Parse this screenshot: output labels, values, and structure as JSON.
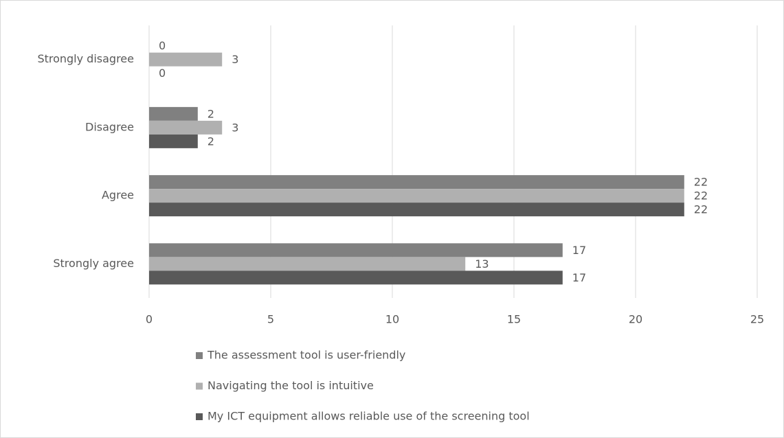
{
  "chart_data": {
    "type": "hbar",
    "categories": [
      "Strongly disagree",
      "Disagree",
      "Agree",
      "Strongly agree"
    ],
    "series": [
      {
        "name": "The assessment tool is user-friendly",
        "color": "#808080",
        "values": [
          0,
          2,
          22,
          17
        ]
      },
      {
        "name": "Navigating the tool is intuitive",
        "color": "#b0b0b0",
        "values": [
          3,
          3,
          22,
          13
        ]
      },
      {
        "name": "My ICT equipment allows reliable use of the screening tool",
        "color": "#595959",
        "values": [
          0,
          2,
          22,
          17
        ]
      }
    ],
    "xlim": [
      0,
      25
    ],
    "xticks": [
      0,
      5,
      10,
      15,
      20,
      25
    ],
    "grid": true,
    "legend": "bottom"
  }
}
